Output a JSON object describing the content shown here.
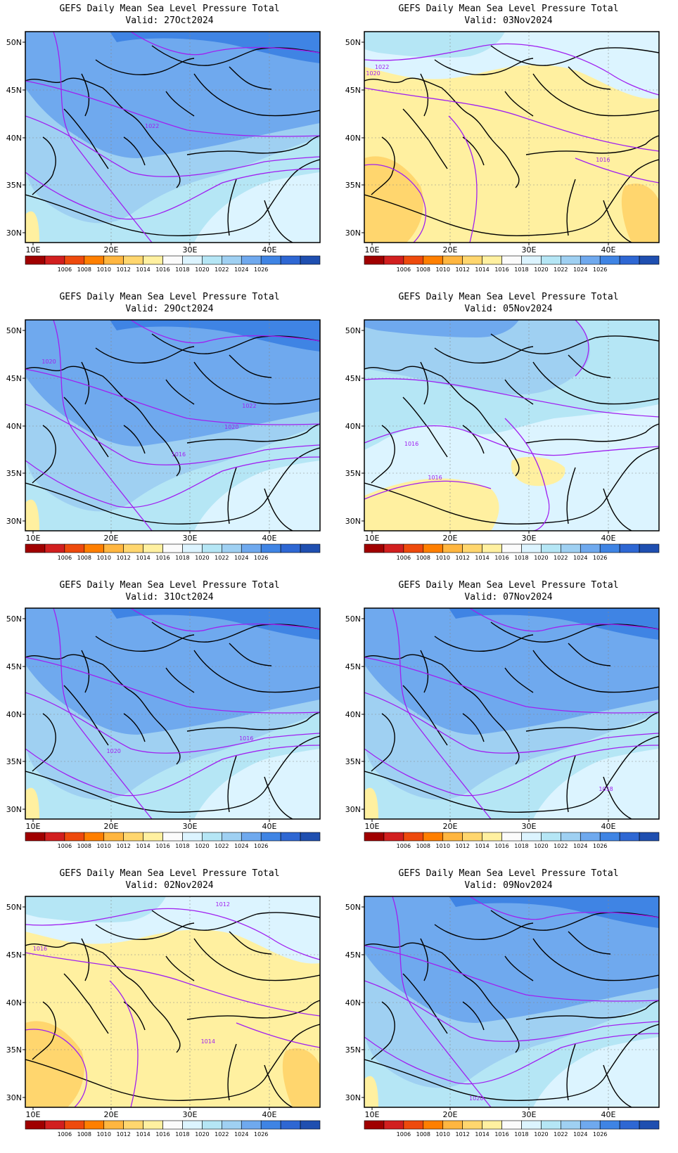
{
  "colorbar": {
    "colors": [
      "#a00000",
      "#d21f1f",
      "#ee4a0d",
      "#ff7f00",
      "#ffb640",
      "#ffd66e",
      "#fff0a0",
      "#fbfbfb",
      "#dcf4ff",
      "#b5e6f5",
      "#9fd0f2",
      "#6fa9ee",
      "#3f84e4",
      "#2e67d3",
      "#1f4fb0"
    ],
    "labels": [
      "1006",
      "1008",
      "1010",
      "1012",
      "1014",
      "1016",
      "1018",
      "1020",
      "1022",
      "1024",
      "1026"
    ]
  },
  "axes": {
    "lat_labels": [
      "50N",
      "45N",
      "40N",
      "35N",
      "30N"
    ],
    "lon_labels": [
      "10E",
      "20E",
      "30E",
      "40E"
    ]
  },
  "panels": [
    {
      "title": "GEFS Daily Mean Sea Level Pressure Total",
      "valid": "Valid: 27Oct2024",
      "variant": "high",
      "contour_labels": [
        {
          "text": "1022",
          "fx": 0.43,
          "fy": 0.45
        }
      ]
    },
    {
      "title": "GEFS Daily Mean Sea Level Pressure Total",
      "valid": "Valid: 03Nov2024",
      "variant": "low",
      "contour_labels": [
        {
          "text": "1022",
          "fx": 0.06,
          "fy": 0.17
        },
        {
          "text": "1020",
          "fx": 0.03,
          "fy": 0.2
        },
        {
          "text": "1016",
          "fx": 0.81,
          "fy": 0.61
        }
      ]
    },
    {
      "title": "GEFS Daily Mean Sea Level Pressure Total",
      "valid": "Valid: 29Oct2024",
      "variant": "high",
      "contour_labels": [
        {
          "text": "1020",
          "fx": 0.08,
          "fy": 0.2
        },
        {
          "text": "1022",
          "fx": 0.76,
          "fy": 0.41
        },
        {
          "text": "1020",
          "fx": 0.7,
          "fy": 0.51
        },
        {
          "text": "1016",
          "fx": 0.52,
          "fy": 0.64
        }
      ]
    },
    {
      "title": "GEFS Daily Mean Sea Level Pressure Total",
      "valid": "Valid: 05Nov2024",
      "variant": "mid",
      "contour_labels": [
        {
          "text": "1016",
          "fx": 0.16,
          "fy": 0.59
        },
        {
          "text": "1016",
          "fx": 0.24,
          "fy": 0.75
        }
      ]
    },
    {
      "title": "GEFS Daily Mean Sea Level Pressure Total",
      "valid": "Valid: 31Oct2024",
      "variant": "high",
      "contour_labels": [
        {
          "text": "1020",
          "fx": 0.3,
          "fy": 0.68
        },
        {
          "text": "1016",
          "fx": 0.75,
          "fy": 0.62
        }
      ]
    },
    {
      "title": "GEFS Daily Mean Sea Level Pressure Total",
      "valid": "Valid: 07Nov2024",
      "variant": "high",
      "contour_labels": [
        {
          "text": "1018",
          "fx": 0.82,
          "fy": 0.86
        }
      ]
    },
    {
      "title": "GEFS Daily Mean Sea Level Pressure Total",
      "valid": "Valid: 02Nov2024",
      "variant": "low",
      "contour_labels": [
        {
          "text": "1016",
          "fx": 0.05,
          "fy": 0.25
        },
        {
          "text": "1012",
          "fx": 0.67,
          "fy": 0.04
        },
        {
          "text": "1014",
          "fx": 0.62,
          "fy": 0.69
        }
      ]
    },
    {
      "title": "GEFS Daily Mean Sea Level Pressure Total",
      "valid": "Valid: 09Nov2024",
      "variant": "high",
      "contour_labels": [
        {
          "text": "1020",
          "fx": 0.38,
          "fy": 0.96
        }
      ]
    }
  ]
}
